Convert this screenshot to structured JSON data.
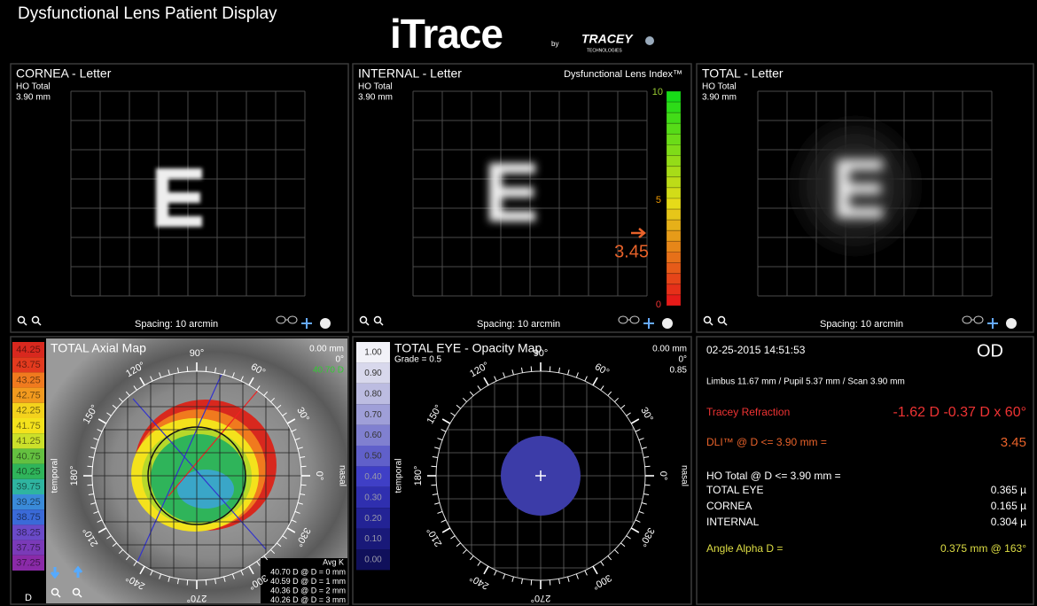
{
  "header": {
    "title": "Dysfunctional Lens Patient Display",
    "logo": "iTrace",
    "logo_by": "by",
    "brand": "TRACEY",
    "brand_sub": "TECHNOLOGIES"
  },
  "panels": {
    "cornea": {
      "title": "CORNEA - Letter",
      "subtitle": "HO Total",
      "size": "3.90 mm",
      "spacing": "Spacing:  10 arcmin"
    },
    "internal": {
      "title": "INTERNAL - Letter",
      "subtitle": "HO Total",
      "size": "3.90 mm",
      "spacing": "Spacing:  10 arcmin",
      "index_title": "Dysfunctional Lens Index™",
      "scale": [
        "10",
        "5",
        "0"
      ],
      "value": "3.45"
    },
    "total": {
      "title": "TOTAL - Letter",
      "subtitle": "HO Total",
      "size": "3.90 mm",
      "spacing": "Spacing:  10 arcmin"
    }
  },
  "axial_map": {
    "title": "TOTAL  Axial Map",
    "legend": [
      "44.25",
      "43.75",
      "43.25",
      "42.75",
      "42.25",
      "41.75",
      "41.25",
      "40.75",
      "40.25",
      "39.75",
      "39.25",
      "38.75",
      "38.25",
      "37.75",
      "37.25"
    ],
    "unit": "D",
    "offset": "0.00 mm",
    "angle": "0°",
    "power": "40.70 D",
    "angles": [
      "90°",
      "60°",
      "30°",
      "0°",
      "330°",
      "300°",
      "270°",
      "240°",
      "210°",
      "180°",
      "150°",
      "120°"
    ],
    "temporal": "temporal",
    "nasal": "nasal",
    "avg_k": "Avg K",
    "avg_rows": [
      "40.70 D @ D = 0 mm",
      "40.59 D @ D = 1 mm",
      "40.36 D @ D = 2 mm",
      "40.26 D @ D = 3 mm"
    ]
  },
  "opacity_map": {
    "title": "TOTAL EYE - Opacity Map",
    "grade": "Grade = 0.5",
    "legend": [
      "1.00",
      "0.90",
      "0.80",
      "0.70",
      "0.60",
      "0.50",
      "0.40",
      "0.30",
      "0.20",
      "0.10",
      "0.00"
    ],
    "offset": "0.00 mm",
    "angle": "0°",
    "value": "0.85",
    "angles": [
      "90°",
      "60°",
      "30°",
      "0°",
      "330°",
      "300°",
      "270°",
      "240°",
      "210°",
      "180°",
      "150°",
      "120°"
    ],
    "temporal": "temporal",
    "nasal": "nasal"
  },
  "summary": {
    "datetime": "02-25-2015  14:51:53",
    "eye": "OD",
    "scan": "Limbus 11.67 mm  /  Pupil 5.37 mm  /  Scan 3.90 mm",
    "refraction_label": "Tracey Refraction",
    "refraction_value": "-1.62 D -0.37 D x 60°",
    "dli_label": "DLI™ @ D <= 3.90 mm  =",
    "dli_value": "3.45",
    "ho_label": "HO Total @ D <= 3.90 mm  =",
    "rows": [
      {
        "name": "TOTAL EYE",
        "value": "0.365 µ"
      },
      {
        "name": "CORNEA",
        "value": "0.165 µ"
      },
      {
        "name": "INTERNAL",
        "value": "0.304 µ"
      }
    ],
    "alpha_label": "Angle Alpha D =",
    "alpha_value": "0.375 mm @ 163°"
  }
}
